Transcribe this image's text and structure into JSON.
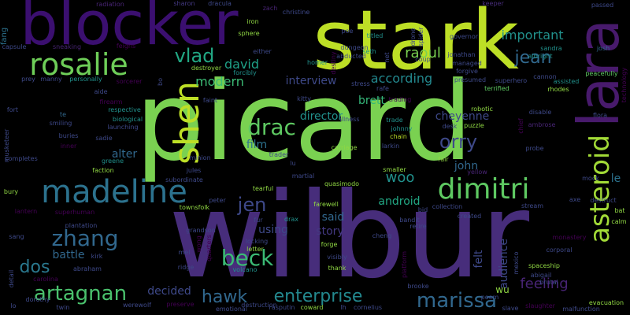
{
  "background": "#000000",
  "words": [
    {
      "text": "picard",
      "color": "#7ad151"
    },
    {
      "text": "wilbur",
      "color": "#472d7b"
    },
    {
      "text": "stark",
      "color": "#bddf26"
    },
    {
      "text": "blocker",
      "color": "#3b0f70"
    },
    {
      "text": "lara",
      "color": "#481a6c"
    },
    {
      "text": "rosalie",
      "color": "#6ece58"
    },
    {
      "text": "madeline",
      "color": "#2c728e"
    },
    {
      "text": "shen",
      "color": "#bddf26"
    },
    {
      "text": "asteroid",
      "color": "#a2da37"
    },
    {
      "text": "dimitri",
      "color": "#5ec962"
    },
    {
      "text": "jean",
      "color": "#31688e"
    },
    {
      "text": "vlad",
      "color": "#22a884"
    },
    {
      "text": "drac",
      "color": "#5ec962"
    },
    {
      "text": "zhang",
      "color": "#31688e"
    },
    {
      "text": "beck",
      "color": "#3bbb75"
    },
    {
      "text": "artagnan",
      "color": "#4ac16d"
    },
    {
      "text": "enterprise",
      "color": "#23888e"
    },
    {
      "text": "marissa",
      "color": "#31688e"
    },
    {
      "text": "hawk",
      "color": "#31688e"
    },
    {
      "text": "dos",
      "color": "#2a788e"
    },
    {
      "text": "jen",
      "color": "#3e4989"
    },
    {
      "text": "orry",
      "color": "#3e4989"
    },
    {
      "text": "woo",
      "color": "#21918c"
    },
    {
      "text": "raoul",
      "color": "#7ad151"
    },
    {
      "text": "important",
      "color": "#21918c"
    },
    {
      "text": "david",
      "color": "#1fa187"
    },
    {
      "text": "modern",
      "color": "#3bbb75"
    },
    {
      "text": "interview",
      "color": "#3e4989"
    },
    {
      "text": "according",
      "color": "#23888e"
    },
    {
      "text": "director",
      "color": "#21918c"
    },
    {
      "text": "film",
      "color": "#2c728e"
    },
    {
      "text": "alter",
      "color": "#31688e"
    },
    {
      "text": "cheyenne",
      "color": "#3e4989"
    },
    {
      "text": "feeling",
      "color": "#482475"
    },
    {
      "text": "john",
      "color": "#31688e"
    },
    {
      "text": "decided",
      "color": "#3e4989"
    },
    {
      "text": "story",
      "color": "#443983"
    },
    {
      "text": "using",
      "color": "#3e4989"
    },
    {
      "text": "said",
      "color": "#31688e"
    },
    {
      "text": "android",
      "color": "#22a884"
    },
    {
      "text": "battle",
      "color": "#31688e"
    },
    {
      "text": "felt",
      "color": "#3e4989"
    },
    {
      "text": "audience",
      "color": "#3e4989"
    },
    {
      "text": "brett",
      "color": "#35b779"
    },
    {
      "text": "le",
      "color": "#2c728e"
    },
    {
      "text": "wu",
      "color": "#90d743"
    },
    {
      "text": "fang",
      "color": "#2c728e"
    },
    {
      "text": "radiation",
      "color": "#482475"
    },
    {
      "text": "sharon",
      "color": "#443983"
    },
    {
      "text": "dracula",
      "color": "#3e4989"
    },
    {
      "text": "zach",
      "color": "#482475"
    },
    {
      "text": "christine",
      "color": "#3e4989"
    },
    {
      "text": "keeper",
      "color": "#472d7b"
    },
    {
      "text": "passed",
      "color": "#3e4989"
    },
    {
      "text": "iron",
      "color": "#90d743"
    },
    {
      "text": "sphere",
      "color": "#90d743"
    },
    {
      "text": "titled",
      "color": "#21918c"
    },
    {
      "text": "poe",
      "color": "#3e4989"
    },
    {
      "text": "drone",
      "color": "#3e4989"
    },
    {
      "text": "spider",
      "color": "#3e4989"
    },
    {
      "text": "governor",
      "color": "#3e4989"
    },
    {
      "text": "feigns",
      "color": "#440154"
    },
    {
      "text": "capsule",
      "color": "#3e4989"
    },
    {
      "text": "sneaking",
      "color": "#482475"
    },
    {
      "text": "either",
      "color": "#3e4989"
    },
    {
      "text": "homer",
      "color": "#21918c"
    },
    {
      "text": "dungeon",
      "color": "#3e4989"
    },
    {
      "text": "abducted",
      "color": "#3e4989"
    },
    {
      "text": "seth",
      "color": "#21918c"
    },
    {
      "text": "coup",
      "color": "#3e4989"
    },
    {
      "text": "jonathan",
      "color": "#3e4989"
    },
    {
      "text": "managed",
      "color": "#3e4989"
    },
    {
      "text": "albright",
      "color": "#21918c"
    },
    {
      "text": "sandra",
      "color": "#21918c"
    },
    {
      "text": "josh",
      "color": "#31688e"
    },
    {
      "text": "prey",
      "color": "#3e4989"
    },
    {
      "text": "manny",
      "color": "#3e4989"
    },
    {
      "text": "personally",
      "color": "#21918c"
    },
    {
      "text": "destroyer",
      "color": "#90d743"
    },
    {
      "text": "forcibly",
      "color": "#21918c"
    },
    {
      "text": "destiny",
      "color": "#440154"
    },
    {
      "text": "net",
      "color": "#3e4989"
    },
    {
      "text": "forgive",
      "color": "#3e4989"
    },
    {
      "text": "presumed",
      "color": "#3e4989"
    },
    {
      "text": "superhero",
      "color": "#3e4989"
    },
    {
      "text": "cannon",
      "color": "#3e4989"
    },
    {
      "text": "peacefully",
      "color": "#5ec962"
    },
    {
      "text": "technology",
      "color": "#440154"
    },
    {
      "text": "aide",
      "color": "#3e4989"
    },
    {
      "text": "sorcerer",
      "color": "#440154"
    },
    {
      "text": "bo",
      "color": "#3e4989"
    },
    {
      "text": "stress",
      "color": "#3e4989"
    },
    {
      "text": "rafe",
      "color": "#3e4989"
    },
    {
      "text": "terrified",
      "color": "#5ec962"
    },
    {
      "text": "assisted",
      "color": "#21918c"
    },
    {
      "text": "rhodes",
      "color": "#90d743"
    },
    {
      "text": "fort",
      "color": "#3e4989"
    },
    {
      "text": "firearm",
      "color": "#440154"
    },
    {
      "text": "respective",
      "color": "#21918c"
    },
    {
      "text": "faint",
      "color": "#3e4989"
    },
    {
      "text": "kitty",
      "color": "#3e4989"
    },
    {
      "text": "illness",
      "color": "#3e4989"
    },
    {
      "text": "trading",
      "color": "#440154"
    },
    {
      "text": "robotic",
      "color": "#90d743"
    },
    {
      "text": "disable",
      "color": "#3e4989"
    },
    {
      "text": "flora",
      "color": "#3e4989"
    },
    {
      "text": "te",
      "color": "#31688e"
    },
    {
      "text": "smiling",
      "color": "#3e4989"
    },
    {
      "text": "biological",
      "color": "#21918c"
    },
    {
      "text": "launching",
      "color": "#3e4989"
    },
    {
      "text": "trade",
      "color": "#21918c"
    },
    {
      "text": "johnny",
      "color": "#21918c"
    },
    {
      "text": "chain",
      "color": "#bddf26"
    },
    {
      "text": "desk",
      "color": "#3e4989"
    },
    {
      "text": "puzzle",
      "color": "#90d743"
    },
    {
      "text": "chief",
      "color": "#440154"
    },
    {
      "text": "ambrose",
      "color": "#482475"
    },
    {
      "text": "musketeer",
      "color": "#3e4989"
    },
    {
      "text": "buries",
      "color": "#3e4989"
    },
    {
      "text": "inner",
      "color": "#440154"
    },
    {
      "text": "sadie",
      "color": "#3e4989"
    },
    {
      "text": "carriage",
      "color": "#90d743"
    },
    {
      "text": "larkin",
      "color": "#3e4989"
    },
    {
      "text": "probe",
      "color": "#3e4989"
    },
    {
      "text": "completes",
      "color": "#3e4989"
    },
    {
      "text": "faction",
      "color": "#90d743"
    },
    {
      "text": "greene",
      "color": "#21918c"
    },
    {
      "text": "minion",
      "color": "#3e4989"
    },
    {
      "text": "trader",
      "color": "#3e4989"
    },
    {
      "text": "lu",
      "color": "#3e4989"
    },
    {
      "text": "fair",
      "color": "#90d743"
    },
    {
      "text": "yellow",
      "color": "#482475"
    },
    {
      "text": "jules",
      "color": "#3e4989"
    },
    {
      "text": "smaller",
      "color": "#90d743"
    },
    {
      "text": "mock",
      "color": "#3e4989"
    },
    {
      "text": "bury",
      "color": "#90d743"
    },
    {
      "text": "subordinate",
      "color": "#3e4989"
    },
    {
      "text": "martial",
      "color": "#3e4989"
    },
    {
      "text": "quasimodo",
      "color": "#90d743"
    },
    {
      "text": "axe",
      "color": "#3e4989"
    },
    {
      "text": "destruct",
      "color": "#3e4989"
    },
    {
      "text": "bat",
      "color": "#90d743"
    },
    {
      "text": "lantern",
      "color": "#440154"
    },
    {
      "text": "townsfolk",
      "color": "#90d743"
    },
    {
      "text": "tearful",
      "color": "#90d743"
    },
    {
      "text": "peter",
      "color": "#3e4989"
    },
    {
      "text": "farewell",
      "color": "#90d743"
    },
    {
      "text": "bid",
      "color": "#3e4989"
    },
    {
      "text": "collection",
      "color": "#3e4989"
    },
    {
      "text": "stream",
      "color": "#3e4989"
    },
    {
      "text": "created",
      "color": "#3e4989"
    },
    {
      "text": "calm",
      "color": "#90d743"
    },
    {
      "text": "superhuman",
      "color": "#440154"
    },
    {
      "text": "sang",
      "color": "#3e4989"
    },
    {
      "text": "plantation",
      "color": "#3e4989"
    },
    {
      "text": "grandson",
      "color": "#3e4989"
    },
    {
      "text": "fur",
      "color": "#3e4989"
    },
    {
      "text": "drax",
      "color": "#21918c"
    },
    {
      "text": "retire",
      "color": "#3e4989"
    },
    {
      "text": "bandit",
      "color": "#3e4989"
    },
    {
      "text": "monastery",
      "color": "#440154"
    },
    {
      "text": "corporal",
      "color": "#3e4989"
    },
    {
      "text": "locking",
      "color": "#3e4989"
    },
    {
      "text": "letter",
      "color": "#90d743"
    },
    {
      "text": "forge",
      "color": "#90d743"
    },
    {
      "text": "cheng",
      "color": "#3e4989"
    },
    {
      "text": "mel",
      "color": "#3e4989"
    },
    {
      "text": "wong",
      "color": "#440154"
    },
    {
      "text": "kirk",
      "color": "#3e4989"
    },
    {
      "text": "quarters",
      "color": "#440154"
    },
    {
      "text": "visibly",
      "color": "#3e4989"
    },
    {
      "text": "mexico",
      "color": "#3e4989"
    },
    {
      "text": "spaceship",
      "color": "#90d743"
    },
    {
      "text": "abigail",
      "color": "#3e4989"
    },
    {
      "text": "brutal",
      "color": "#3e4989"
    },
    {
      "text": "carolina",
      "color": "#440154"
    },
    {
      "text": "abraham",
      "color": "#3e4989"
    },
    {
      "text": "ridge",
      "color": "#3e4989"
    },
    {
      "text": "volcano",
      "color": "#21918c"
    },
    {
      "text": "thank",
      "color": "#90d743"
    },
    {
      "text": "platform",
      "color": "#440154"
    },
    {
      "text": "detail",
      "color": "#3e4989"
    },
    {
      "text": "dorothy",
      "color": "#3e4989"
    },
    {
      "text": "twin",
      "color": "#3e4989"
    },
    {
      "text": "werewolf",
      "color": "#3e4989"
    },
    {
      "text": "preserve",
      "color": "#440154"
    },
    {
      "text": "rasputin",
      "color": "#3e4989"
    },
    {
      "text": "emotional",
      "color": "#3e4989"
    },
    {
      "text": "destruction",
      "color": "#3e4989"
    },
    {
      "text": "coward",
      "color": "#90d743"
    },
    {
      "text": "lo",
      "color": "#3e4989"
    },
    {
      "text": "lh",
      "color": "#3e4989"
    },
    {
      "text": "cornelius",
      "color": "#3e4989"
    },
    {
      "text": "brooke",
      "color": "#3e4989"
    },
    {
      "text": "poem",
      "color": "#3e4989"
    },
    {
      "text": "slave",
      "color": "#3e4989"
    },
    {
      "text": "slaughter",
      "color": "#440154"
    },
    {
      "text": "evacuation",
      "color": "#90d743"
    },
    {
      "text": "malfunction",
      "color": "#3e4989"
    }
  ]
}
